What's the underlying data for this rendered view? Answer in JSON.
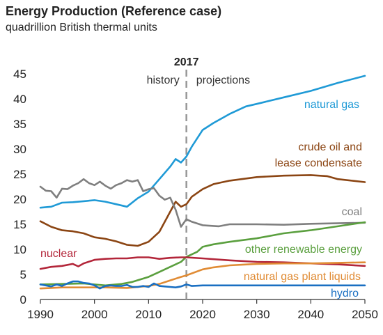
{
  "chart_data": {
    "type": "line",
    "title": "Energy Production (Reference case)",
    "subtitle": "quadrillion British thermal units",
    "xlim": [
      1990,
      2050
    ],
    "ylim": [
      0,
      45
    ],
    "x_ticks": [
      1990,
      2000,
      2010,
      2020,
      2030,
      2040,
      2050
    ],
    "y_ticks": [
      0,
      5,
      10,
      15,
      20,
      25,
      30,
      35,
      40,
      45
    ],
    "divider": {
      "year": 2017,
      "label": "2017",
      "left_label": "history",
      "right_label": "projections"
    },
    "series": [
      {
        "name": "natural gas",
        "color": "#1f9ad6",
        "label_lines": [
          "natural gas"
        ],
        "points": [
          [
            1990,
            18.3
          ],
          [
            1992,
            18.5
          ],
          [
            1994,
            19.3
          ],
          [
            1996,
            19.4
          ],
          [
            1998,
            19.6
          ],
          [
            2000,
            19.8
          ],
          [
            2002,
            19.5
          ],
          [
            2004,
            19.0
          ],
          [
            2006,
            18.5
          ],
          [
            2008,
            20.2
          ],
          [
            2010,
            21.5
          ],
          [
            2012,
            24.0
          ],
          [
            2014,
            26.5
          ],
          [
            2015,
            28.0
          ],
          [
            2016,
            27.3
          ],
          [
            2017,
            28.5
          ],
          [
            2018,
            30.5
          ],
          [
            2020,
            33.8
          ],
          [
            2022,
            35.2
          ],
          [
            2025,
            37.0
          ],
          [
            2028,
            38.5
          ],
          [
            2030,
            39.0
          ],
          [
            2035,
            40.3
          ],
          [
            2040,
            41.6
          ],
          [
            2045,
            43.2
          ],
          [
            2050,
            44.6
          ]
        ]
      },
      {
        "name": "crude oil and lease condensate",
        "color": "#8b4513",
        "label_lines": [
          "crude oil and",
          "lease condensate"
        ],
        "points": [
          [
            1990,
            15.6
          ],
          [
            1992,
            14.5
          ],
          [
            1994,
            13.8
          ],
          [
            1996,
            13.6
          ],
          [
            1998,
            13.2
          ],
          [
            2000,
            12.4
          ],
          [
            2002,
            12.1
          ],
          [
            2004,
            11.6
          ],
          [
            2006,
            10.9
          ],
          [
            2008,
            10.7
          ],
          [
            2010,
            11.5
          ],
          [
            2012,
            13.5
          ],
          [
            2014,
            17.5
          ],
          [
            2015,
            19.5
          ],
          [
            2016,
            18.5
          ],
          [
            2017,
            19.0
          ],
          [
            2018,
            20.5
          ],
          [
            2020,
            22.0
          ],
          [
            2022,
            23.0
          ],
          [
            2025,
            23.7
          ],
          [
            2030,
            24.4
          ],
          [
            2035,
            24.7
          ],
          [
            2040,
            24.8
          ],
          [
            2043,
            24.6
          ],
          [
            2045,
            24.0
          ],
          [
            2050,
            23.4
          ]
        ]
      },
      {
        "name": "coal",
        "color": "#7f7f7f",
        "label_lines": [
          "coal"
        ],
        "points": [
          [
            1990,
            22.5
          ],
          [
            1991,
            21.7
          ],
          [
            1992,
            21.6
          ],
          [
            1993,
            20.3
          ],
          [
            1994,
            22.1
          ],
          [
            1995,
            22.0
          ],
          [
            1996,
            22.7
          ],
          [
            1997,
            23.2
          ],
          [
            1998,
            24.0
          ],
          [
            1999,
            23.2
          ],
          [
            2000,
            22.8
          ],
          [
            2001,
            23.5
          ],
          [
            2002,
            22.7
          ],
          [
            2003,
            22.1
          ],
          [
            2004,
            22.8
          ],
          [
            2005,
            23.2
          ],
          [
            2006,
            23.8
          ],
          [
            2007,
            23.5
          ],
          [
            2008,
            23.8
          ],
          [
            2009,
            21.6
          ],
          [
            2010,
            22.0
          ],
          [
            2011,
            22.2
          ],
          [
            2012,
            20.7
          ],
          [
            2013,
            19.9
          ],
          [
            2014,
            20.3
          ],
          [
            2015,
            17.9
          ],
          [
            2016,
            14.5
          ],
          [
            2017,
            16.0
          ],
          [
            2018,
            15.5
          ],
          [
            2020,
            14.8
          ],
          [
            2023,
            14.6
          ],
          [
            2025,
            15.0
          ],
          [
            2030,
            15.0
          ],
          [
            2035,
            14.9
          ],
          [
            2040,
            15.1
          ],
          [
            2045,
            15.2
          ],
          [
            2050,
            15.3
          ]
        ]
      },
      {
        "name": "other renewable energy",
        "color": "#5a9f3e",
        "label_lines": [
          "other renewable energy"
        ],
        "points": [
          [
            1990,
            3.0
          ],
          [
            1994,
            3.1
          ],
          [
            1998,
            3.2
          ],
          [
            2002,
            2.8
          ],
          [
            2005,
            3.1
          ],
          [
            2007,
            3.5
          ],
          [
            2010,
            4.5
          ],
          [
            2012,
            5.5
          ],
          [
            2014,
            6.5
          ],
          [
            2016,
            7.5
          ],
          [
            2017,
            8.5
          ],
          [
            2019,
            9.5
          ],
          [
            2020,
            10.5
          ],
          [
            2022,
            11.0
          ],
          [
            2025,
            11.5
          ],
          [
            2030,
            12.2
          ],
          [
            2035,
            13.2
          ],
          [
            2040,
            13.8
          ],
          [
            2045,
            14.6
          ],
          [
            2050,
            15.4
          ]
        ]
      },
      {
        "name": "nuclear",
        "color": "#b3263a",
        "label_lines": [
          "nuclear"
        ],
        "points": [
          [
            1990,
            6.1
          ],
          [
            1992,
            6.5
          ],
          [
            1994,
            6.7
          ],
          [
            1996,
            7.1
          ],
          [
            1997,
            6.6
          ],
          [
            1998,
            7.2
          ],
          [
            2000,
            7.9
          ],
          [
            2002,
            8.1
          ],
          [
            2004,
            8.2
          ],
          [
            2006,
            8.2
          ],
          [
            2008,
            8.4
          ],
          [
            2010,
            8.4
          ],
          [
            2012,
            8.1
          ],
          [
            2014,
            8.3
          ],
          [
            2016,
            8.4
          ],
          [
            2017,
            8.4
          ],
          [
            2020,
            8.2
          ],
          [
            2025,
            7.8
          ],
          [
            2030,
            7.5
          ],
          [
            2035,
            7.4
          ],
          [
            2040,
            7.2
          ],
          [
            2045,
            7.0
          ],
          [
            2050,
            6.7
          ]
        ]
      },
      {
        "name": "natural gas plant liquids",
        "color": "#e08b34",
        "label_lines": [
          "natural gas plant liquids"
        ],
        "points": [
          [
            1990,
            2.2
          ],
          [
            1994,
            2.4
          ],
          [
            1998,
            2.4
          ],
          [
            2002,
            2.4
          ],
          [
            2006,
            2.3
          ],
          [
            2010,
            2.7
          ],
          [
            2012,
            3.1
          ],
          [
            2014,
            3.8
          ],
          [
            2016,
            4.5
          ],
          [
            2017,
            4.8
          ],
          [
            2020,
            6.0
          ],
          [
            2022,
            6.4
          ],
          [
            2025,
            6.8
          ],
          [
            2030,
            7.1
          ],
          [
            2035,
            7.2
          ],
          [
            2040,
            7.2
          ],
          [
            2045,
            7.3
          ],
          [
            2050,
            7.4
          ]
        ]
      },
      {
        "name": "hydro",
        "color": "#1a6fc2",
        "label_lines": [
          "hydro"
        ],
        "points": [
          [
            1990,
            3.0
          ],
          [
            1992,
            2.6
          ],
          [
            1993,
            3.0
          ],
          [
            1994,
            2.7
          ],
          [
            1995,
            3.2
          ],
          [
            1996,
            3.6
          ],
          [
            1997,
            3.6
          ],
          [
            1998,
            3.3
          ],
          [
            1999,
            3.2
          ],
          [
            2000,
            2.8
          ],
          [
            2001,
            2.2
          ],
          [
            2002,
            2.7
          ],
          [
            2003,
            2.8
          ],
          [
            2004,
            2.7
          ],
          [
            2005,
            2.7
          ],
          [
            2006,
            2.9
          ],
          [
            2007,
            2.5
          ],
          [
            2008,
            2.5
          ],
          [
            2009,
            2.7
          ],
          [
            2010,
            2.5
          ],
          [
            2011,
            3.2
          ],
          [
            2012,
            2.7
          ],
          [
            2013,
            2.6
          ],
          [
            2014,
            2.5
          ],
          [
            2015,
            2.4
          ],
          [
            2016,
            2.6
          ],
          [
            2017,
            3.0
          ],
          [
            2018,
            2.7
          ],
          [
            2020,
            2.8
          ],
          [
            2025,
            2.8
          ],
          [
            2030,
            2.8
          ],
          [
            2040,
            2.8
          ],
          [
            2050,
            2.8
          ]
        ]
      }
    ]
  }
}
